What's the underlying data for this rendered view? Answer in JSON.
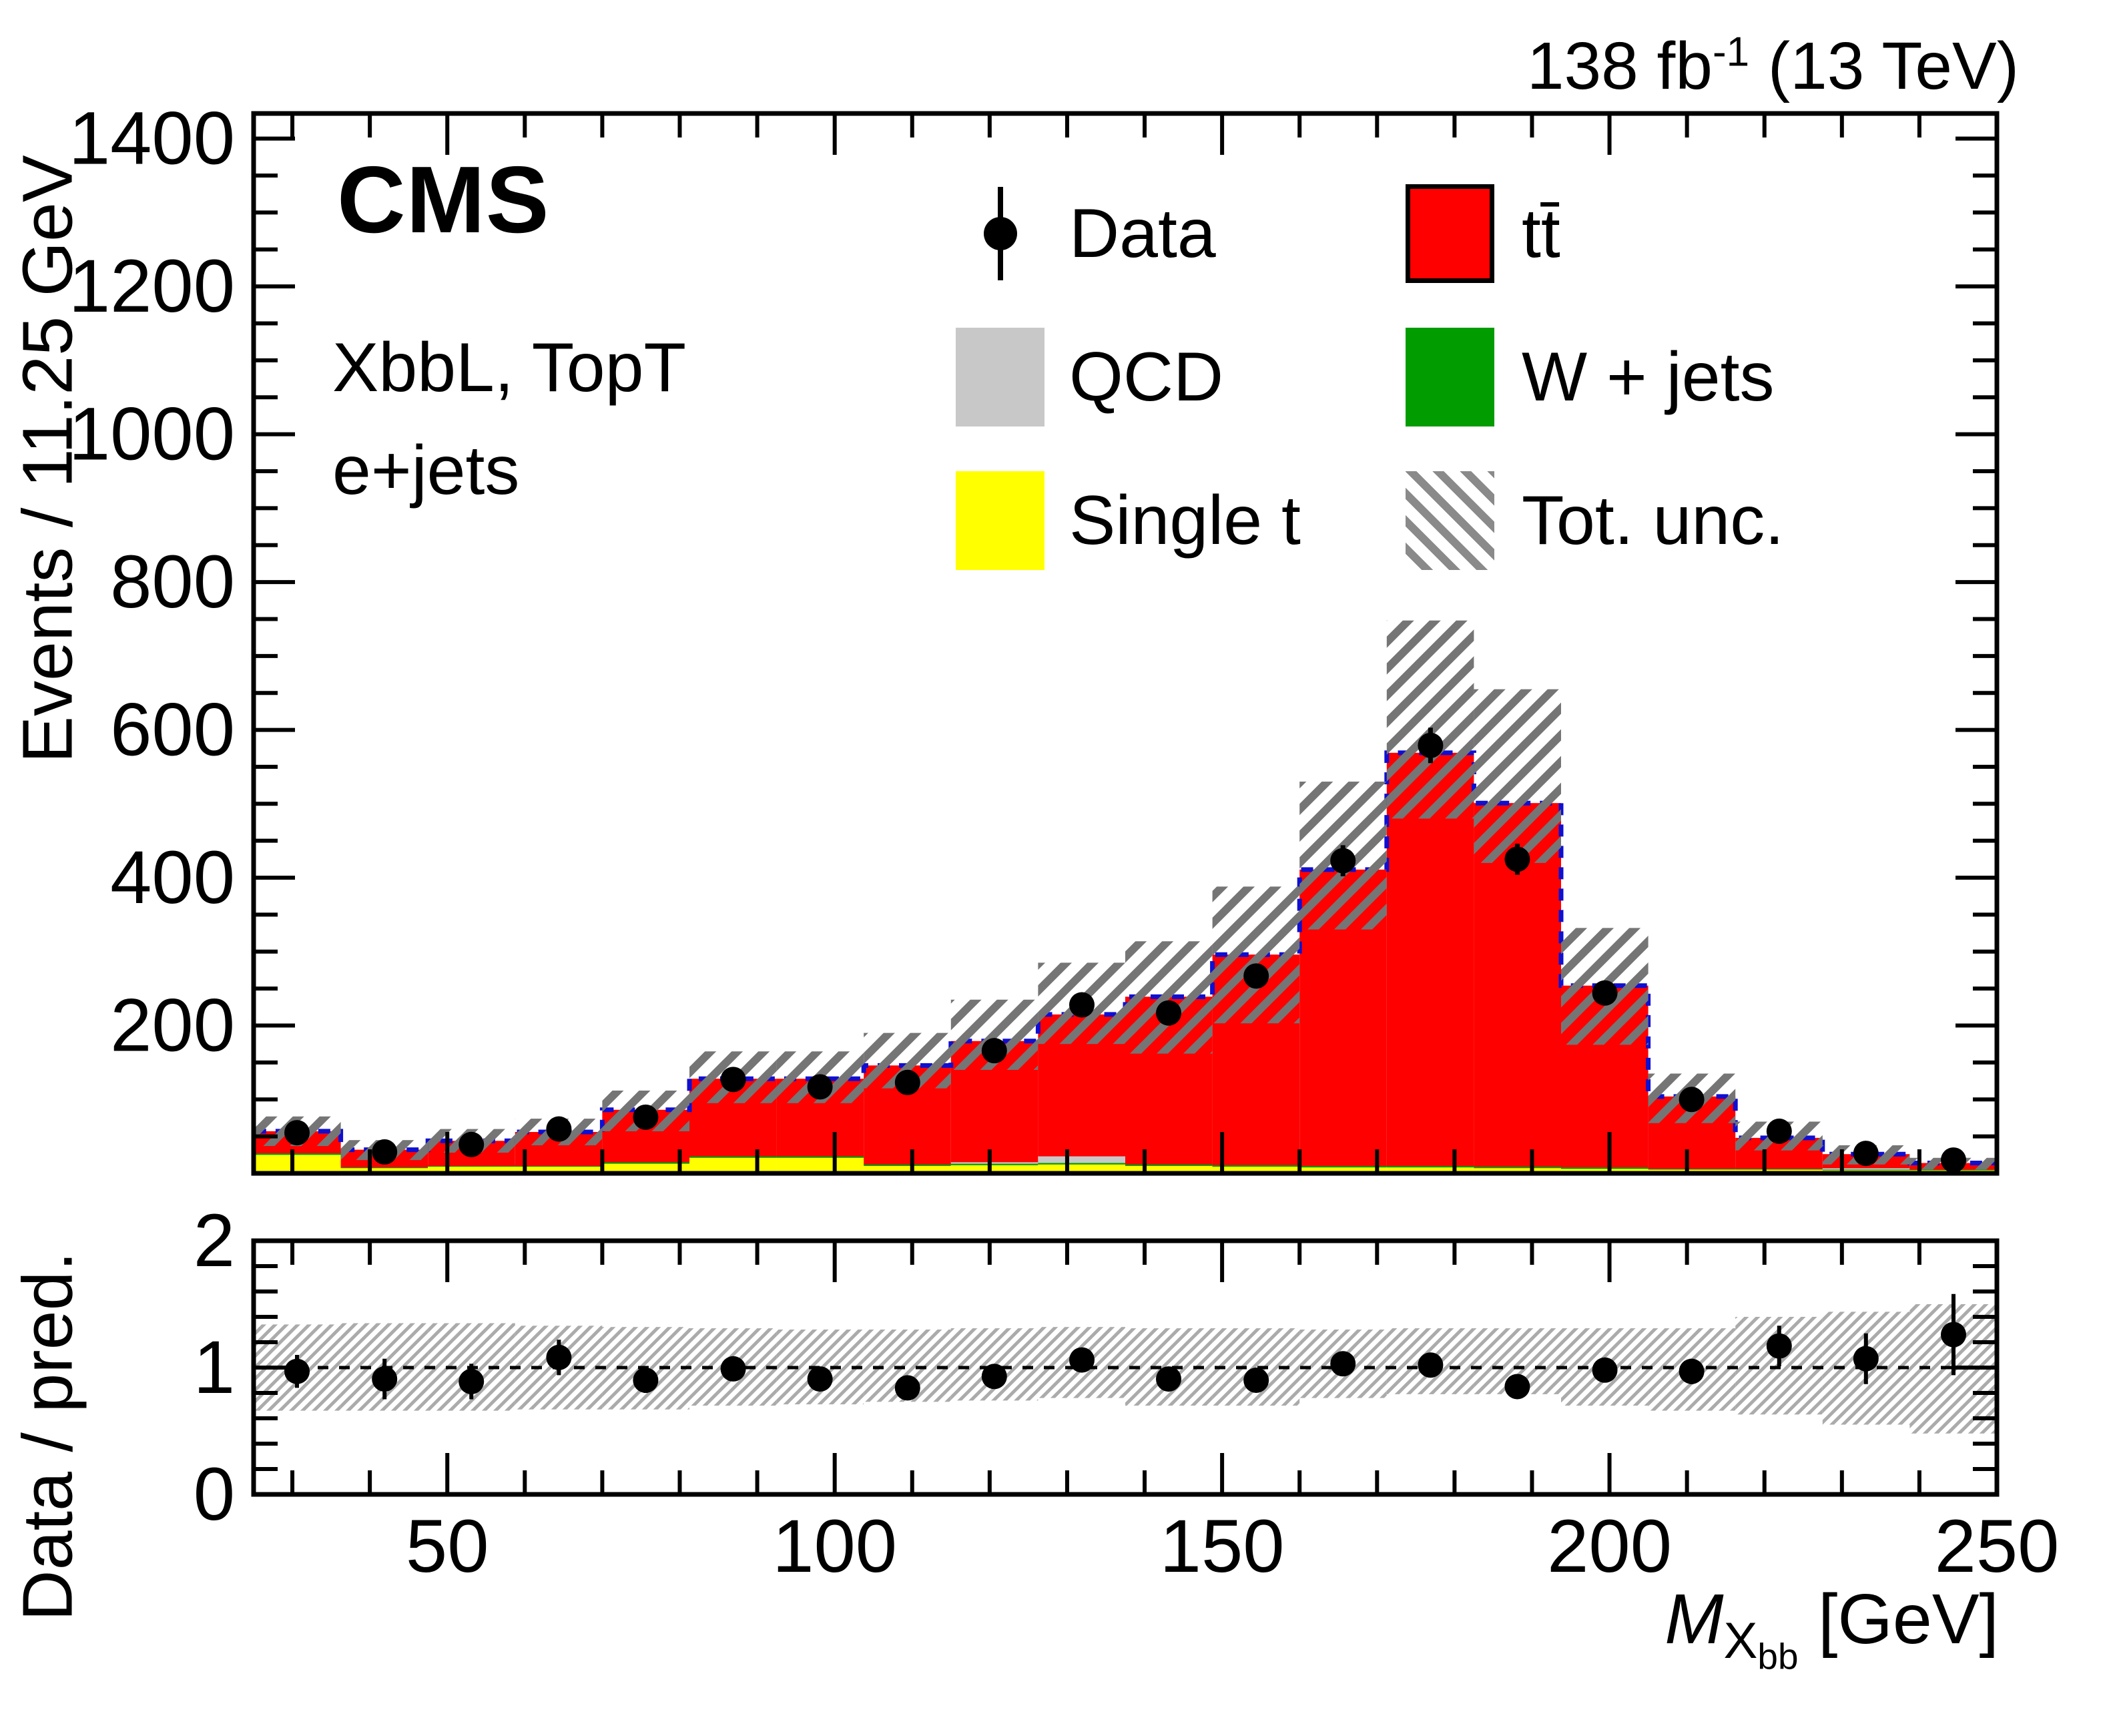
{
  "header": {
    "lumi_value": "138 fb",
    "lumi_exponent": "-1",
    "energy": " (13 TeV)",
    "experiment": "CMS"
  },
  "annotations": {
    "selection": "XbbL, TopT",
    "channel": "e+jets"
  },
  "legend": {
    "entries": [
      {
        "id": "data",
        "label": "Data"
      },
      {
        "id": "ttbar",
        "label": "tt̄"
      },
      {
        "id": "qcd",
        "label": "QCD"
      },
      {
        "id": "wjets",
        "label": "W + jets"
      },
      {
        "id": "singlet",
        "label": "Single t"
      },
      {
        "id": "totunc",
        "label": "Tot. unc."
      }
    ]
  },
  "axes": {
    "ylabel_main": "Events / 11.25 GeV",
    "ylabel_ratio": "Data / pred.",
    "xlabel_m": "M",
    "xlabel_sub": "X",
    "xlabel_subsub": "bb",
    "xlabel_unit": " [GeV]"
  },
  "chart_data": {
    "type": "stacked-histogram-with-ratio",
    "x_range": [
      25,
      250
    ],
    "bin_width": 11.25,
    "n_bins": 20,
    "bin_centers": [
      30.6,
      41.9,
      53.1,
      64.4,
      75.6,
      86.9,
      98.1,
      109.4,
      120.6,
      131.9,
      143.1,
      154.4,
      165.6,
      176.9,
      188.1,
      199.4,
      210.6,
      221.9,
      233.1,
      244.4
    ],
    "x_ticks_major": [
      50,
      100,
      150,
      200,
      250
    ],
    "x_tick_minor_step": 10,
    "y_main": {
      "lim": [
        0,
        1434
      ],
      "ticks_major": [
        200,
        400,
        600,
        800,
        1000,
        1200,
        1400
      ],
      "tick_minor_step": 50
    },
    "y_ratio": {
      "lim": [
        0,
        2
      ],
      "ticks_major": [
        0,
        1,
        2
      ],
      "tick_minor_step": 0.2
    },
    "colors": {
      "ttbar": "#ff0000",
      "qcd": "#c8c8c8",
      "wjets": "#009c00",
      "singlet": "#ffff00",
      "total_line": "#0f0fd0",
      "hatch_main": "#757575",
      "hatch_ratio": "#ababab",
      "marker": "#000000"
    },
    "stack_order": [
      "singlet",
      "wjets",
      "qcd",
      "ttbar"
    ],
    "series": [
      {
        "name": "Single t",
        "id": "singlet",
        "values": [
          25,
          7,
          9,
          9,
          13,
          21,
          21,
          10,
          11,
          12,
          10,
          9,
          8,
          8,
          7,
          6,
          5,
          5,
          4,
          4
        ]
      },
      {
        "name": "W + jets",
        "id": "wjets",
        "values": [
          2,
          1,
          1,
          1,
          2,
          2,
          2,
          2,
          2,
          2,
          2,
          2,
          2,
          2,
          2,
          2,
          1,
          1,
          1,
          1
        ]
      },
      {
        "name": "QCD",
        "id": "qcd",
        "values": [
          0,
          0,
          0,
          0,
          0,
          0,
          0,
          0,
          2,
          9,
          0,
          0,
          0,
          0,
          0,
          0,
          0,
          0,
          2,
          0
        ]
      },
      {
        "name": "tt̄",
        "id": "ttbar",
        "values": [
          30,
          24,
          34,
          46,
          71,
          105,
          105,
          134,
          164,
          192,
          227,
          285,
          401,
          559,
          492,
          246,
          98,
          42,
          19,
          9
        ]
      }
    ],
    "total_prediction": [
      57,
      32,
      44,
      56,
      86,
      128,
      128,
      146,
      179,
      215,
      239,
      296,
      411,
      569,
      501,
      254,
      104,
      48,
      26,
      14
    ],
    "uncertainty_band": {
      "lo": [
        37,
        18,
        28,
        38,
        57,
        95,
        95,
        115,
        140,
        175,
        162,
        203,
        330,
        480,
        420,
        174,
        68,
        31,
        12,
        5
      ],
      "hi": [
        77,
        45,
        60,
        74,
        112,
        165,
        165,
        190,
        235,
        285,
        314,
        388,
        530,
        748,
        655,
        332,
        135,
        70,
        38,
        21
      ]
    },
    "data_points": {
      "y": [
        55,
        29,
        39,
        60,
        76,
        127,
        117,
        123,
        166,
        228,
        217,
        267,
        423,
        579,
        425,
        244,
        100,
        57,
        27,
        18
      ],
      "err": [
        7,
        5,
        6,
        8,
        9,
        11,
        11,
        11,
        13,
        15,
        15,
        16,
        21,
        24,
        21,
        16,
        10,
        8,
        5,
        4
      ]
    },
    "ratio": {
      "y": [
        0.97,
        0.91,
        0.89,
        1.08,
        0.9,
        0.99,
        0.91,
        0.84,
        0.93,
        1.06,
        0.91,
        0.9,
        1.03,
        1.02,
        0.85,
        0.98,
        0.97,
        1.17,
        1.07,
        1.26
      ],
      "err": [
        0.13,
        0.16,
        0.14,
        0.14,
        0.1,
        0.09,
        0.08,
        0.08,
        0.07,
        0.07,
        0.06,
        0.06,
        0.05,
        0.04,
        0.04,
        0.06,
        0.1,
        0.16,
        0.2,
        0.32
      ],
      "band_lo": [
        0.66,
        0.66,
        0.66,
        0.67,
        0.67,
        0.7,
        0.71,
        0.73,
        0.74,
        0.76,
        0.7,
        0.7,
        0.76,
        0.79,
        0.79,
        0.7,
        0.66,
        0.63,
        0.55,
        0.48
      ],
      "band_hi": [
        1.34,
        1.35,
        1.35,
        1.33,
        1.32,
        1.31,
        1.3,
        1.3,
        1.31,
        1.32,
        1.31,
        1.31,
        1.3,
        1.31,
        1.31,
        1.31,
        1.31,
        1.4,
        1.44,
        1.5
      ]
    }
  }
}
